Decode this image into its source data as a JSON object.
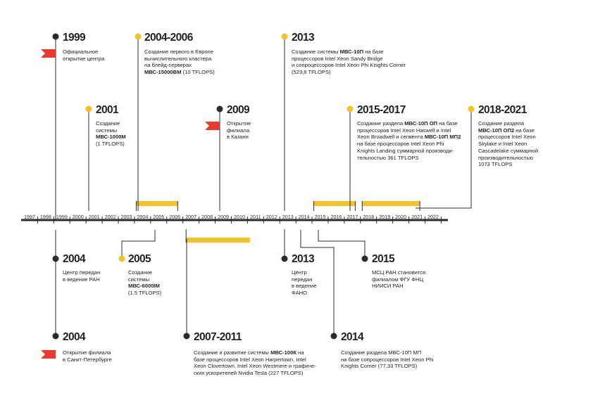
{
  "colors": {
    "accent": "#f5c12a",
    "flag": "#e63b2e",
    "dark": "#2b2b2b"
  },
  "axis_years": [
    "1997",
    "1998",
    "1999",
    "2000",
    "2001",
    "2002",
    "2003",
    "2004",
    "2005",
    "2006",
    "2007",
    "2008",
    "2009",
    "2010",
    "2011",
    "2012",
    "2013",
    "2014",
    "2015",
    "2016",
    "2017",
    "2018",
    "2019",
    "2020",
    "2021",
    "2022"
  ],
  "ranges_above": [
    {
      "from": "2004",
      "to": "2006"
    },
    {
      "from": "2015",
      "to": "2017"
    },
    {
      "from": "2018",
      "to": "2021"
    }
  ],
  "ranges_below": [
    {
      "from": "2007",
      "to": "2011"
    }
  ],
  "events_above": [
    {
      "id": "e1999",
      "year_label": "1999",
      "marker": "dark",
      "flag": true,
      "lines": [
        "Официальное",
        "открытие центра"
      ]
    },
    {
      "id": "e2001",
      "year_label": "2001",
      "marker": "yellow",
      "flag": false,
      "lines": [
        "Создание",
        "системы",
        "**МВС-1000М**",
        "(1 TFLOPS)"
      ]
    },
    {
      "id": "e2004_2006",
      "year_label": "2004-2006",
      "marker": "yellow",
      "flag": false,
      "lines": [
        "Создание первого в Европе",
        "вычислительного кластера",
        "на блейд-серверах",
        "**МВС-15000ВМ** (10 TFLOPS)"
      ]
    },
    {
      "id": "e2009",
      "year_label": "2009",
      "marker": "dark",
      "flag": true,
      "lines": [
        "Открытие",
        "филиала",
        "в Казани"
      ]
    },
    {
      "id": "e2013a",
      "year_label": "2013",
      "marker": "yellow",
      "flag": false,
      "lines": [
        "Создание системы **МВС-10П** на базе",
        "процессоров Intel Xeon Sandy Bridge",
        "и сопроцессоров Intel Xeon Phi Knights Corner",
        "(523,8 TFLOPS)"
      ]
    },
    {
      "id": "e2015_2017",
      "year_label": "2015-2017",
      "marker": "yellow",
      "flag": false,
      "lines": [
        "Создание раздела **МВС-10П ОП** на базе",
        "процессоров Intel Xeon Haswell и Intel",
        "Xeon Broadwell и сегмента **МВС-10П МП2**",
        "на базе процессоров Intel Xeon Phi",
        "Knights Landing суммарной производи-",
        "тельностью 361 TFLOPS"
      ]
    },
    {
      "id": "e2018_2021",
      "year_label": "2018-2021",
      "marker": "yellow",
      "flag": false,
      "lines": [
        "Создание раздела",
        "**МВС-10П ОП2** на базе",
        "процессоров Intel Xeon",
        "Skylake и Intel Xeon",
        "Cascadelake суммарной",
        "производительностью",
        "1073 TFLOPS"
      ]
    }
  ],
  "events_below": [
    {
      "id": "e2004a",
      "year_label": "2004",
      "marker": "dark",
      "flag": false,
      "lines": [
        "Центр передан",
        "в ведение РАН"
      ]
    },
    {
      "id": "e2005",
      "year_label": "2005",
      "marker": "yellow",
      "flag": false,
      "lines": [
        "Создание",
        "системы",
        "**МВС-6000IM**",
        "(1.5 TFLOPS)"
      ]
    },
    {
      "id": "e2013b",
      "year_label": "2013",
      "marker": "dark",
      "flag": false,
      "lines": [
        "Центр",
        "передан",
        "в ведение",
        "ФАНО"
      ]
    },
    {
      "id": "e2015b",
      "year_label": "2015",
      "marker": "dark",
      "flag": false,
      "lines": [
        "МСЦ РАН становится",
        "филиалом ФГУ ФНЦ",
        "НИИСИ РАН"
      ]
    },
    {
      "id": "e2004b",
      "year_label": "2004",
      "marker": "dark",
      "flag": true,
      "lines": [
        "Открытие филиала",
        "в Санкт-Петербурге"
      ]
    },
    {
      "id": "e2007_2011",
      "year_label": "2007-2011",
      "marker": "dark",
      "flag": false,
      "lines": [
        "Создание и развитие системы **МВС-100К** на",
        "базе процессоров Intel Xeon Harpertown, Intel",
        "Xeon Clovertown, Intel Xeon Westmere и графиче-",
        "ских ускорителей Nvidia Tesla (227 TFLOPS)"
      ]
    },
    {
      "id": "e2014",
      "year_label": "2014",
      "marker": "dark",
      "flag": false,
      "lines": [
        "Создание раздела МВС-10П МП",
        "на базе сопроцессоров Intel Xeon Phi",
        "Knights Corner (77,33 TFLOPS)"
      ]
    }
  ]
}
